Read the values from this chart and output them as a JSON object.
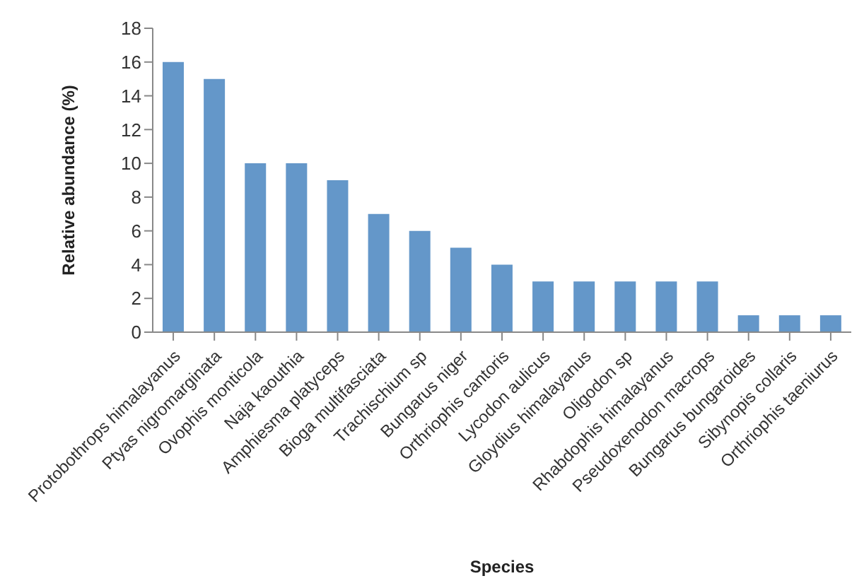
{
  "chart_data": {
    "type": "bar",
    "xlabel": "Species",
    "ylabel": "Relative abundance (%)",
    "categories": [
      "Protobothrops himalayanus",
      "Ptyas nigromarginata",
      "Ovophis monticola",
      "Naja kaouthia",
      "Amphiesma platyceps",
      "Bioga multifasciata",
      "Trachischium sp",
      "Bungarus niger",
      "Orthriophis cantoris",
      "Lycodon aulicus",
      "Gloydius himalayanus",
      "Oligodon sp",
      "Rhabdophis himalayanus",
      "Pseudoxenodon macrops",
      "Bungarus bungaroides",
      "Sibynopis collaris",
      "Orthriophis taeniurus"
    ],
    "values": [
      16,
      15,
      10,
      10,
      9,
      7,
      6,
      5,
      4,
      3,
      3,
      3,
      3,
      3,
      1,
      1,
      1
    ],
    "color": "#6497c9",
    "ylim": [
      0,
      18
    ],
    "yticks": [
      0,
      2,
      4,
      6,
      8,
      10,
      12,
      14,
      16,
      18
    ],
    "grid": false
  }
}
